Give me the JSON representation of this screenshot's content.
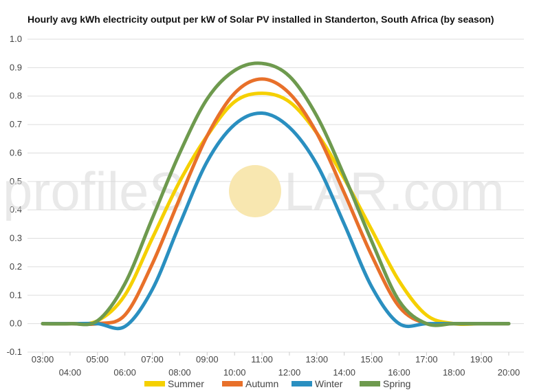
{
  "chart_data": {
    "type": "line",
    "title": "Hourly avg kWh electricity output per kW of Solar PV installed in Standerton, South Africa (by season)",
    "xlabel": "",
    "ylabel": "",
    "x": [
      "03:00",
      "04:00",
      "05:00",
      "06:00",
      "07:00",
      "08:00",
      "09:00",
      "10:00",
      "11:00",
      "12:00",
      "13:00",
      "14:00",
      "15:00",
      "16:00",
      "17:00",
      "18:00",
      "19:00",
      "20:00"
    ],
    "ylim": [
      -0.1,
      1.0
    ],
    "yticks": [
      "-0.1",
      "0.0",
      "0.1",
      "0.2",
      "0.3",
      "0.4",
      "0.5",
      "0.6",
      "0.7",
      "0.8",
      "0.9",
      "1.0"
    ],
    "grid": true,
    "legend_position": "bottom",
    "series": [
      {
        "name": "Summer",
        "color": "#f5d000",
        "values": [
          0.0,
          0.0,
          0.01,
          0.1,
          0.3,
          0.5,
          0.66,
          0.78,
          0.81,
          0.78,
          0.67,
          0.51,
          0.33,
          0.15,
          0.03,
          0.0,
          0.0,
          0.0
        ]
      },
      {
        "name": "Autumn",
        "color": "#e8702a",
        "values": [
          0.0,
          0.0,
          0.0,
          0.03,
          0.21,
          0.44,
          0.66,
          0.81,
          0.86,
          0.81,
          0.67,
          0.46,
          0.24,
          0.06,
          0.0,
          0.0,
          0.0,
          0.0
        ]
      },
      {
        "name": "Winter",
        "color": "#2a8fc0",
        "values": [
          0.0,
          0.0,
          0.0,
          -0.01,
          0.12,
          0.35,
          0.57,
          0.7,
          0.74,
          0.69,
          0.56,
          0.35,
          0.13,
          0.0,
          0.0,
          0.0,
          0.0,
          0.0
        ]
      },
      {
        "name": "Spring",
        "color": "#6e9a4e",
        "values": [
          0.0,
          0.0,
          0.01,
          0.14,
          0.37,
          0.6,
          0.79,
          0.89,
          0.915,
          0.87,
          0.73,
          0.52,
          0.29,
          0.08,
          0.0,
          0.0,
          0.0,
          0.0
        ]
      }
    ]
  },
  "watermark": {
    "left": "profileS",
    "right": "LAR.com",
    "sun_color": "#f8e7b0"
  }
}
